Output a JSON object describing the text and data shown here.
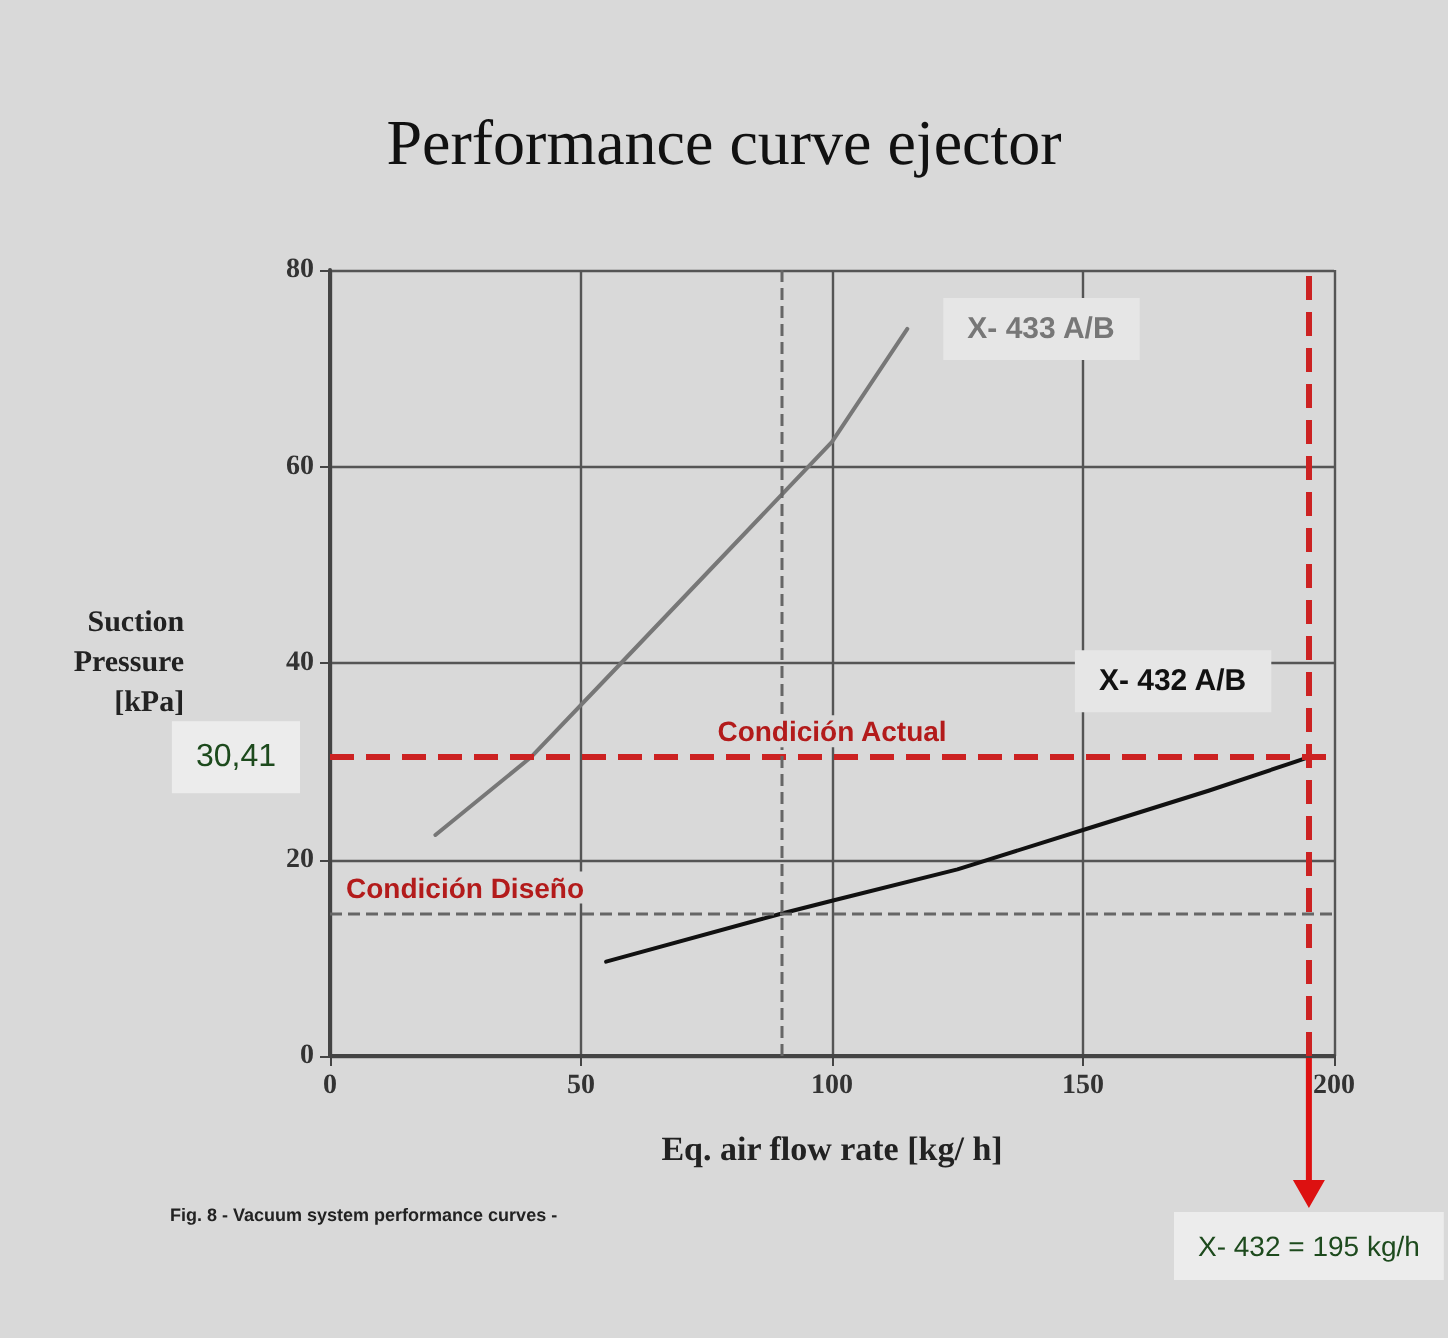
{
  "chart_data": {
    "type": "line",
    "title": "Performance curve ejector",
    "xlabel": "Eq. air flow rate [kg/ h]",
    "ylabel": "Suction\nPressure\n[kPa]",
    "xlim": [
      0,
      200
    ],
    "xticks": [
      0,
      50,
      100,
      150,
      200
    ],
    "ylim": [
      0,
      80
    ],
    "yticks": [
      0,
      20,
      40,
      60,
      80
    ],
    "grid": true,
    "marker": "none",
    "series": [
      {
        "name": "X- 433 A/B",
        "color": "#777777",
        "x": [
          21,
          40,
          58,
          100,
          115
        ],
        "values": [
          22.5,
          30.4,
          40,
          62.5,
          74
        ]
      },
      {
        "name": "X- 432 A/B",
        "color": "#111111",
        "x": [
          55,
          90,
          100,
          125,
          150,
          175,
          195
        ],
        "values": [
          9.6,
          14.5,
          15.8,
          19,
          23,
          27,
          30.41
        ]
      }
    ],
    "ref_lines": [
      {
        "axis": "y",
        "value": 30.41,
        "label": "Condición Actual",
        "color": "#cc2222",
        "line_style": "dashed"
      },
      {
        "axis": "x",
        "value": 195,
        "color": "#cc2222",
        "line_style": "dashed"
      },
      {
        "axis": "y",
        "value": 14.5,
        "label": "Condición Diseño",
        "color": "#666666",
        "line_style": "dashed"
      },
      {
        "axis": "x",
        "value": 90,
        "color": "#666666",
        "line_style": "dashed"
      }
    ],
    "annotations": [
      {
        "text": "30,41",
        "x": 0,
        "y": 30.41
      },
      "X- 432 = 195 kg/h",
      "Fig. 8 - Vacuum system performance curves -"
    ]
  }
}
